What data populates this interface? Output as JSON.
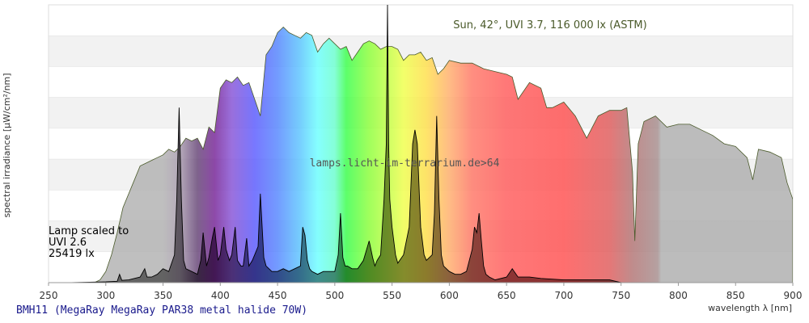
{
  "caption": "BMH11 (MegaRay MegaRay PAR38 metal halide 70W)",
  "chart_data": {
    "type": "area",
    "title": "",
    "xlabel": "wavelength λ [nm]",
    "ylabel": "spectral irradiance [µW/cm²/nm]",
    "xlim": [
      250,
      900
    ],
    "ylim": [
      0,
      1
    ],
    "x_ticks": [
      250,
      300,
      350,
      400,
      450,
      500,
      550,
      600,
      650,
      700,
      750,
      800,
      850,
      900
    ],
    "grid": "horizontal bands",
    "watermark": "lamps.licht-im-terrarium.de>64",
    "series": [
      {
        "name": "Sun, 42°, UVI 3.7, 116 000 lx (ASTM)",
        "x": [
          290,
          295,
          300,
          305,
          310,
          315,
          320,
          325,
          330,
          335,
          340,
          345,
          350,
          355,
          360,
          365,
          370,
          375,
          380,
          385,
          390,
          395,
          400,
          405,
          410,
          415,
          420,
          425,
          430,
          435,
          440,
          445,
          450,
          455,
          460,
          465,
          470,
          475,
          480,
          485,
          490,
          495,
          500,
          505,
          510,
          515,
          520,
          525,
          530,
          535,
          540,
          545,
          550,
          555,
          560,
          565,
          570,
          575,
          580,
          585,
          590,
          595,
          600,
          610,
          620,
          630,
          640,
          650,
          655,
          660,
          670,
          680,
          685,
          690,
          700,
          710,
          720,
          730,
          740,
          750,
          755,
          760,
          762,
          765,
          770,
          780,
          790,
          800,
          810,
          820,
          830,
          840,
          850,
          860,
          865,
          870,
          880,
          890,
          895,
          900
        ],
        "y": [
          0,
          0.01,
          0.04,
          0.1,
          0.18,
          0.27,
          0.32,
          0.37,
          0.42,
          0.43,
          0.44,
          0.45,
          0.46,
          0.48,
          0.47,
          0.49,
          0.52,
          0.51,
          0.52,
          0.48,
          0.56,
          0.54,
          0.7,
          0.73,
          0.72,
          0.74,
          0.71,
          0.72,
          0.66,
          0.6,
          0.82,
          0.85,
          0.9,
          0.92,
          0.9,
          0.89,
          0.88,
          0.9,
          0.89,
          0.83,
          0.86,
          0.88,
          0.86,
          0.84,
          0.85,
          0.8,
          0.83,
          0.86,
          0.87,
          0.86,
          0.84,
          0.85,
          0.85,
          0.84,
          0.8,
          0.82,
          0.82,
          0.83,
          0.8,
          0.81,
          0.75,
          0.77,
          0.8,
          0.79,
          0.79,
          0.77,
          0.76,
          0.75,
          0.74,
          0.66,
          0.72,
          0.7,
          0.63,
          0.63,
          0.65,
          0.6,
          0.52,
          0.6,
          0.62,
          0.62,
          0.63,
          0.4,
          0.15,
          0.5,
          0.58,
          0.6,
          0.56,
          0.57,
          0.57,
          0.55,
          0.53,
          0.5,
          0.49,
          0.45,
          0.37,
          0.48,
          0.47,
          0.45,
          0.36,
          0.3
        ]
      },
      {
        "name": "Lamp scaled to UVI 2.6 25419 lx",
        "x": [
          270,
          300,
          310,
          312,
          314,
          320,
          330,
          334,
          336,
          340,
          345,
          350,
          355,
          360,
          362,
          364,
          366,
          368,
          370,
          375,
          380,
          383,
          385,
          388,
          390,
          393,
          395,
          398,
          400,
          403,
          405,
          408,
          410,
          413,
          415,
          418,
          420,
          423,
          425,
          428,
          430,
          433,
          435,
          438,
          440,
          445,
          450,
          455,
          460,
          465,
          470,
          472,
          474,
          476,
          478,
          480,
          485,
          490,
          495,
          500,
          503,
          505,
          507,
          509,
          511,
          515,
          520,
          525,
          530,
          533,
          535,
          537,
          540,
          543,
          545,
          546,
          547,
          548,
          550,
          553,
          555,
          560,
          565,
          568,
          570,
          572,
          575,
          578,
          580,
          585,
          587,
          589,
          591,
          593,
          595,
          600,
          605,
          610,
          615,
          620,
          622,
          624,
          626,
          628,
          630,
          632,
          635,
          640,
          650,
          655,
          660,
          670,
          680,
          700,
          720,
          740,
          750
        ],
        "y": [
          0,
          0.003,
          0.005,
          0.03,
          0.008,
          0.01,
          0.02,
          0.05,
          0.02,
          0.02,
          0.03,
          0.05,
          0.04,
          0.1,
          0.3,
          0.63,
          0.3,
          0.08,
          0.05,
          0.04,
          0.03,
          0.08,
          0.18,
          0.06,
          0.09,
          0.16,
          0.2,
          0.08,
          0.1,
          0.2,
          0.12,
          0.08,
          0.1,
          0.2,
          0.08,
          0.06,
          0.06,
          0.16,
          0.06,
          0.08,
          0.1,
          0.13,
          0.32,
          0.09,
          0.06,
          0.04,
          0.04,
          0.05,
          0.04,
          0.05,
          0.06,
          0.2,
          0.17,
          0.08,
          0.05,
          0.04,
          0.03,
          0.04,
          0.04,
          0.04,
          0.1,
          0.25,
          0.09,
          0.06,
          0.06,
          0.05,
          0.05,
          0.08,
          0.15,
          0.09,
          0.06,
          0.08,
          0.1,
          0.3,
          0.5,
          1.0,
          0.5,
          0.3,
          0.2,
          0.1,
          0.07,
          0.1,
          0.2,
          0.5,
          0.55,
          0.5,
          0.2,
          0.1,
          0.08,
          0.1,
          0.25,
          0.6,
          0.3,
          0.1,
          0.06,
          0.04,
          0.03,
          0.03,
          0.04,
          0.12,
          0.2,
          0.18,
          0.25,
          0.15,
          0.06,
          0.03,
          0.02,
          0.01,
          0.02,
          0.05,
          0.02,
          0.02,
          0.015,
          0.01,
          0.01,
          0.01,
          0
        ]
      }
    ]
  }
}
